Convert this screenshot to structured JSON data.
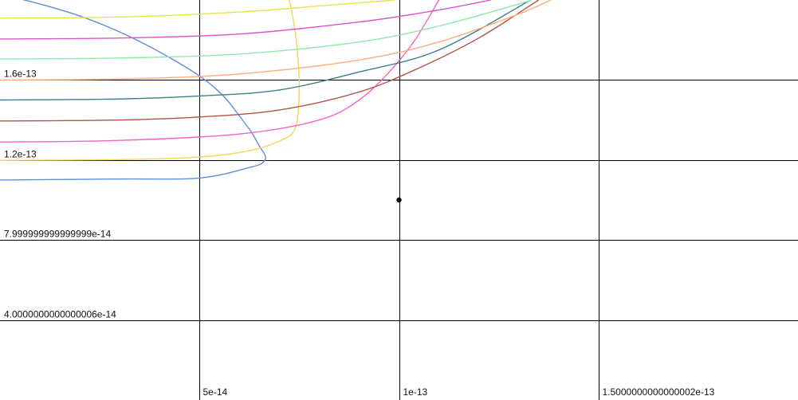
{
  "chart_data": {
    "type": "line",
    "xlim": [
      0,
      2e-13
    ],
    "ylim": [
      0,
      2e-13
    ],
    "grid": true,
    "x_ticks": [
      {
        "value": 5e-14,
        "label": "5e-14"
      },
      {
        "value": 1e-13,
        "label": "1e-13"
      },
      {
        "value": 1.5e-13,
        "label": "1.5000000000000002e-13"
      }
    ],
    "y_ticks": [
      {
        "value": 4e-14,
        "label": "4.0000000000000006e-14"
      },
      {
        "value": 8e-14,
        "label": "7.999999999999999e-14"
      },
      {
        "value": 1.2e-13,
        "label": "1.2e-13"
      },
      {
        "value": 1.6e-13,
        "label": "1.6e-13"
      }
    ],
    "point": {
      "x": 1e-13,
      "y": 1e-13,
      "color": "#000000"
    },
    "series": [
      {
        "color": "#5b8fd9",
        "points": [
          [
            2e-15,
            2.02e-13
          ],
          [
            1e-14,
            1.98e-13
          ],
          [
            2e-14,
            1.92e-13
          ],
          [
            3e-14,
            1.84e-13
          ],
          [
            4e-14,
            1.74e-13
          ],
          [
            5e-14,
            1.62e-13
          ],
          [
            5.6e-14,
            1.52e-13
          ],
          [
            6e-14,
            1.42e-13
          ],
          [
            6.3e-14,
            1.34e-13
          ],
          [
            6.5e-14,
            1.27e-13
          ],
          [
            6.65e-14,
            1.22e-13
          ],
          [
            6.6e-14,
            1.19e-13
          ],
          [
            6.3e-14,
            1.165e-13
          ],
          [
            5e-14,
            1.11e-13
          ],
          [
            3e-14,
            1.105e-13
          ],
          [
            0,
            1.1e-13
          ]
        ]
      },
      {
        "color": "#f2d65c",
        "points": [
          [
            0,
            1.198e-13
          ],
          [
            3e-14,
            1.202e-13
          ],
          [
            5e-14,
            1.215e-13
          ],
          [
            6.2e-14,
            1.245e-13
          ],
          [
            7e-14,
            1.295e-13
          ],
          [
            7.4e-14,
            1.36e-13
          ],
          [
            7.5e-14,
            1.55e-13
          ],
          [
            7.45e-14,
            1.75e-13
          ],
          [
            7.35e-14,
            1.9e-13
          ],
          [
            7.25e-14,
            2e-13
          ]
        ]
      },
      {
        "color": "#f564c3",
        "points": [
          [
            0,
            1.29e-13
          ],
          [
            3e-14,
            1.298e-13
          ],
          [
            6e-14,
            1.33e-13
          ],
          [
            8e-14,
            1.4e-13
          ],
          [
            9e-14,
            1.5e-13
          ],
          [
            9.8e-14,
            1.65e-13
          ],
          [
            1.04e-13,
            1.8e-13
          ],
          [
            1.1e-13,
            2e-13
          ]
        ]
      },
      {
        "color": "#b5524a",
        "points": [
          [
            0,
            1.395e-13
          ],
          [
            3e-14,
            1.4e-13
          ],
          [
            5e-14,
            1.415e-13
          ],
          [
            7e-14,
            1.45e-13
          ],
          [
            9e-14,
            1.54e-13
          ],
          [
            1.05e-13,
            1.66e-13
          ],
          [
            1.2e-13,
            1.81e-13
          ],
          [
            1.35e-13,
            2e-13
          ]
        ]
      },
      {
        "color": "#3a7f8c",
        "points": [
          [
            0,
            1.5e-13
          ],
          [
            3e-14,
            1.505e-13
          ],
          [
            5e-14,
            1.52e-13
          ],
          [
            7e-14,
            1.55e-13
          ],
          [
            9e-14,
            1.64e-13
          ],
          [
            1.1e-13,
            1.75e-13
          ],
          [
            1.33e-13,
            2e-13
          ]
        ]
      },
      {
        "color": "#ffad7a",
        "points": [
          [
            0,
            1.6e-13
          ],
          [
            3e-14,
            1.605e-13
          ],
          [
            6e-14,
            1.63e-13
          ],
          [
            9e-14,
            1.7e-13
          ],
          [
            1.1e-13,
            1.79e-13
          ],
          [
            1.3e-13,
            1.93e-13
          ],
          [
            1.38e-13,
            2e-13
          ]
        ]
      },
      {
        "color": "#8de8a8",
        "points": [
          [
            0,
            1.705e-13
          ],
          [
            3e-14,
            1.71e-13
          ],
          [
            6e-14,
            1.73e-13
          ],
          [
            9e-14,
            1.79e-13
          ],
          [
            1.1e-13,
            1.87e-13
          ],
          [
            1.3e-13,
            1.98e-13
          ],
          [
            1.33e-13,
            2e-13
          ]
        ]
      },
      {
        "color": "#dd55c4",
        "points": [
          [
            0,
            1.805e-13
          ],
          [
            3e-14,
            1.81e-13
          ],
          [
            6e-14,
            1.83e-13
          ],
          [
            9e-14,
            1.89e-13
          ],
          [
            1.1e-13,
            1.95e-13
          ],
          [
            1.23e-13,
            2e-13
          ]
        ]
      },
      {
        "color": "#e6e24f",
        "points": [
          [
            0,
            1.91e-13
          ],
          [
            3e-14,
            1.915e-13
          ],
          [
            6e-14,
            1.94e-13
          ],
          [
            8e-14,
            1.97e-13
          ],
          [
            9.9e-14,
            2e-13
          ]
        ]
      }
    ]
  }
}
